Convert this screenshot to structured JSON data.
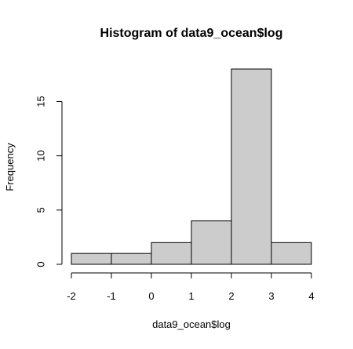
{
  "chart_data": {
    "type": "bar",
    "title": "Histogram of data9_ocean$log",
    "xlabel": "data9_ocean$log",
    "ylabel": "Frequency",
    "bins": [
      {
        "from": -2,
        "to": -1,
        "count": 1
      },
      {
        "from": -1,
        "to": 0,
        "count": 1
      },
      {
        "from": 0,
        "to": 1,
        "count": 2
      },
      {
        "from": 1,
        "to": 2,
        "count": 4
      },
      {
        "from": 2,
        "to": 3,
        "count": 18
      },
      {
        "from": 3,
        "to": 4,
        "count": 2
      }
    ],
    "xticks": [
      -2,
      -1,
      0,
      1,
      2,
      3,
      4
    ],
    "yticks": [
      0,
      5,
      10,
      15
    ],
    "xlim": [
      -2,
      4
    ],
    "ylim": [
      0,
      18
    ],
    "bar_color": "#cccccc",
    "grid": false
  }
}
